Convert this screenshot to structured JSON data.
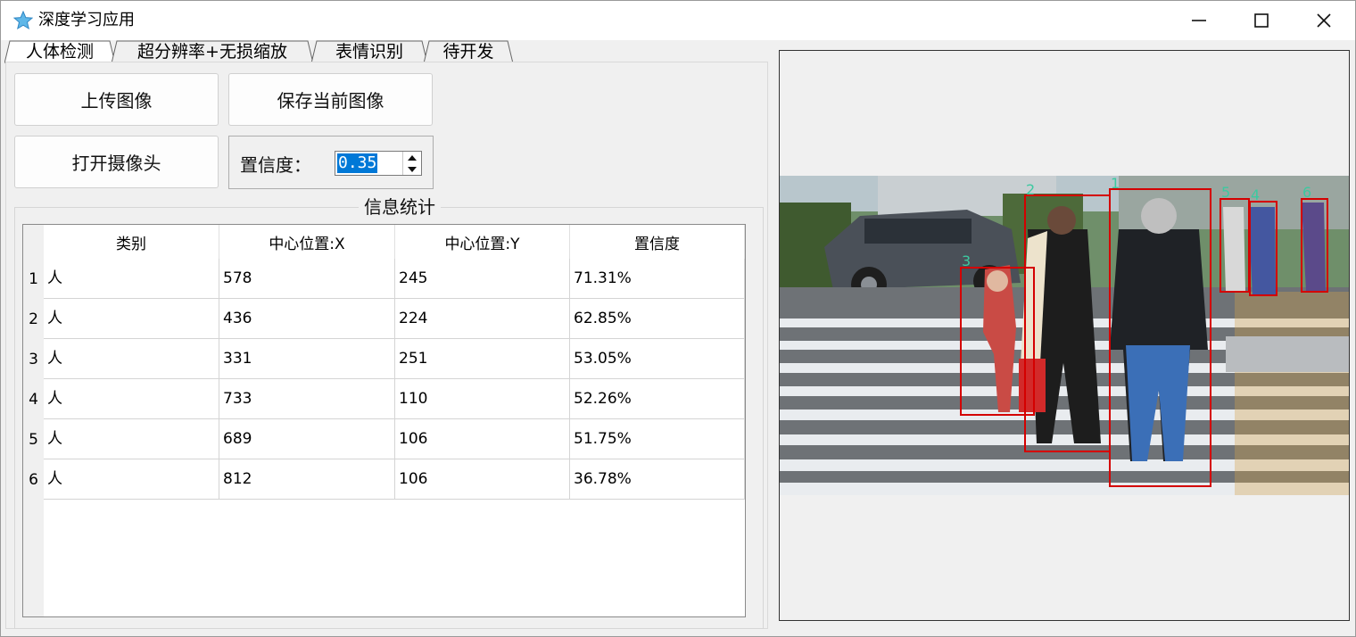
{
  "window": {
    "title": "深度学习应用",
    "icon": "star-icon"
  },
  "tabs": [
    {
      "label": "人体检测",
      "active": true
    },
    {
      "label": "超分辨率+无损缩放",
      "active": false
    },
    {
      "label": "表情识别",
      "active": false
    },
    {
      "label": "待开发",
      "active": false
    }
  ],
  "controls": {
    "upload_label": "上传图像",
    "save_label": "保存当前图像",
    "camera_label": "打开摄像头",
    "confidence_label": "置信度：",
    "confidence_value": "0.35"
  },
  "stats": {
    "title": "信息统计",
    "columns": [
      "类别",
      "中心位置:X",
      "中心位置:Y",
      "置信度"
    ],
    "rows": [
      {
        "num": "1",
        "cls": "人",
        "x": "578",
        "y": "245",
        "conf": "71.31%"
      },
      {
        "num": "2",
        "cls": "人",
        "x": "436",
        "y": "224",
        "conf": "62.85%"
      },
      {
        "num": "3",
        "cls": "人",
        "x": "331",
        "y": "251",
        "conf": "53.05%"
      },
      {
        "num": "4",
        "cls": "人",
        "x": "733",
        "y": "110",
        "conf": "52.26%"
      },
      {
        "num": "5",
        "cls": "人",
        "x": "689",
        "y": "106",
        "conf": "51.75%"
      },
      {
        "num": "6",
        "cls": "人",
        "x": "812",
        "y": "106",
        "conf": "36.78%"
      }
    ]
  },
  "preview": {
    "detections": [
      {
        "label": "1"
      },
      {
        "label": "2"
      },
      {
        "label": "3"
      },
      {
        "label": "4"
      },
      {
        "label": "5"
      },
      {
        "label": "6"
      }
    ],
    "box_color": "#d40000",
    "label_color": "#3cc9a0"
  }
}
